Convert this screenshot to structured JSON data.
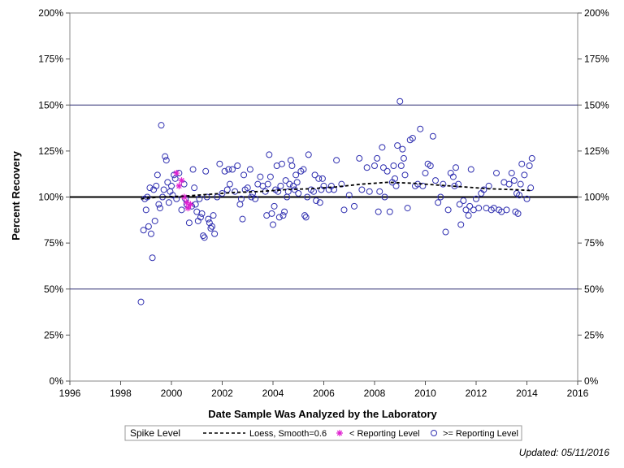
{
  "chart_data": {
    "type": "scatter",
    "xlabel": "Date Sample Was Analyzed by the Laboratory",
    "ylabel": "Percent Recovery",
    "xlim": [
      1996,
      2016
    ],
    "ylim": [
      0,
      200
    ],
    "x_ticks": [
      1996,
      1998,
      2000,
      2002,
      2004,
      2006,
      2008,
      2010,
      2012,
      2014,
      2016
    ],
    "x_tick_labels": [
      "1996",
      "1998",
      "2000",
      "2002",
      "2004",
      "2006",
      "2008",
      "2010",
      "2012",
      "2014",
      "2016"
    ],
    "y_ticks": [
      0,
      25,
      50,
      75,
      100,
      125,
      150,
      175,
      200
    ],
    "y_tick_labels": [
      "0%",
      "25%",
      "50%",
      "75%",
      "100%",
      "125%",
      "150%",
      "175%",
      "200%"
    ],
    "reference_lines": [
      50,
      100,
      150
    ],
    "legend": {
      "title": "Spike Level",
      "placement": "bottom",
      "entries": [
        {
          "label": "Loess, Smooth=0.6",
          "symbol": "dashed-line"
        },
        {
          "label": "< Reporting Level",
          "symbol": "star",
          "color": "#e020d0"
        },
        {
          "label": ">= Reporting Level",
          "symbol": "circle",
          "color": "#3030b0"
        }
      ]
    },
    "footnote": "Updated: 05/11/2016",
    "colors": {
      "circle": "#3030b0",
      "star": "#e020d0",
      "loess": "#000000",
      "refline": "#2a2a70"
    },
    "series": [
      {
        "name": ">= Reporting Level",
        "marker": "circle",
        "points": [
          [
            1998.8,
            43
          ],
          [
            1998.9,
            82
          ],
          [
            1998.95,
            99
          ],
          [
            1999.0,
            93
          ],
          [
            1999.05,
            100
          ],
          [
            1999.1,
            84
          ],
          [
            1999.15,
            105
          ],
          [
            1999.2,
            80
          ],
          [
            1999.25,
            67
          ],
          [
            1999.3,
            104
          ],
          [
            1999.35,
            87
          ],
          [
            1999.4,
            106
          ],
          [
            1999.45,
            112
          ],
          [
            1999.5,
            96
          ],
          [
            1999.55,
            94
          ],
          [
            1999.6,
            139
          ],
          [
            1999.65,
            100
          ],
          [
            1999.7,
            104
          ],
          [
            1999.75,
            122
          ],
          [
            1999.8,
            120
          ],
          [
            1999.85,
            108
          ],
          [
            1999.9,
            97
          ],
          [
            1999.95,
            103
          ],
          [
            2000.0,
            106
          ],
          [
            2000.05,
            101
          ],
          [
            2000.1,
            112
          ],
          [
            2000.15,
            110
          ],
          [
            2000.2,
            99
          ],
          [
            2000.3,
            113
          ],
          [
            2000.4,
            93
          ],
          [
            2000.5,
            107
          ],
          [
            2000.55,
            99
          ],
          [
            2000.6,
            96
          ],
          [
            2000.7,
            86
          ],
          [
            2000.8,
            95
          ],
          [
            2000.85,
            115
          ],
          [
            2000.9,
            105
          ],
          [
            2000.95,
            96
          ],
          [
            2001.0,
            92
          ],
          [
            2001.05,
            87
          ],
          [
            2001.1,
            99
          ],
          [
            2001.15,
            89
          ],
          [
            2001.2,
            91
          ],
          [
            2001.25,
            79
          ],
          [
            2001.3,
            78
          ],
          [
            2001.35,
            114
          ],
          [
            2001.4,
            100
          ],
          [
            2001.45,
            88
          ],
          [
            2001.5,
            86
          ],
          [
            2001.55,
            83
          ],
          [
            2001.6,
            84
          ],
          [
            2001.65,
            90
          ],
          [
            2001.7,
            80
          ],
          [
            2001.8,
            100
          ],
          [
            2001.9,
            118
          ],
          [
            2002.0,
            102
          ],
          [
            2002.1,
            114
          ],
          [
            2002.2,
            104
          ],
          [
            2002.25,
            115
          ],
          [
            2002.3,
            107
          ],
          [
            2002.4,
            115
          ],
          [
            2002.5,
            103
          ],
          [
            2002.6,
            117
          ],
          [
            2002.7,
            96
          ],
          [
            2002.75,
            99
          ],
          [
            2002.8,
            88
          ],
          [
            2002.85,
            112
          ],
          [
            2002.9,
            104
          ],
          [
            2003.0,
            105
          ],
          [
            2003.1,
            115
          ],
          [
            2003.15,
            100
          ],
          [
            2003.2,
            102
          ],
          [
            2003.3,
            99
          ],
          [
            2003.4,
            107
          ],
          [
            2003.5,
            111
          ],
          [
            2003.6,
            106
          ],
          [
            2003.7,
            103
          ],
          [
            2003.75,
            90
          ],
          [
            2003.8,
            107
          ],
          [
            2003.85,
            123
          ],
          [
            2003.9,
            111
          ],
          [
            2003.95,
            91
          ],
          [
            2004.0,
            85
          ],
          [
            2004.05,
            95
          ],
          [
            2004.1,
            104
          ],
          [
            2004.15,
            117
          ],
          [
            2004.2,
            103
          ],
          [
            2004.25,
            89
          ],
          [
            2004.3,
            106
          ],
          [
            2004.35,
            118
          ],
          [
            2004.4,
            90
          ],
          [
            2004.45,
            92
          ],
          [
            2004.5,
            109
          ],
          [
            2004.55,
            100
          ],
          [
            2004.6,
            103
          ],
          [
            2004.65,
            107
          ],
          [
            2004.7,
            120
          ],
          [
            2004.75,
            117
          ],
          [
            2004.8,
            106
          ],
          [
            2004.85,
            104
          ],
          [
            2004.9,
            112
          ],
          [
            2004.95,
            108
          ],
          [
            2005.0,
            102
          ],
          [
            2005.1,
            114
          ],
          [
            2005.2,
            115
          ],
          [
            2005.25,
            90
          ],
          [
            2005.3,
            89
          ],
          [
            2005.35,
            100
          ],
          [
            2005.4,
            123
          ],
          [
            2005.5,
            104
          ],
          [
            2005.6,
            103
          ],
          [
            2005.65,
            112
          ],
          [
            2005.7,
            98
          ],
          [
            2005.8,
            110
          ],
          [
            2005.85,
            97
          ],
          [
            2005.9,
            104
          ],
          [
            2005.95,
            110
          ],
          [
            2006.0,
            106
          ],
          [
            2006.2,
            104
          ],
          [
            2006.3,
            106
          ],
          [
            2006.4,
            104
          ],
          [
            2006.5,
            120
          ],
          [
            2006.7,
            107
          ],
          [
            2006.8,
            93
          ],
          [
            2007.0,
            101
          ],
          [
            2007.2,
            95
          ],
          [
            2007.4,
            121
          ],
          [
            2007.5,
            104
          ],
          [
            2007.7,
            116
          ],
          [
            2007.8,
            103
          ],
          [
            2008.0,
            117
          ],
          [
            2008.1,
            121
          ],
          [
            2008.15,
            92
          ],
          [
            2008.2,
            103
          ],
          [
            2008.3,
            127
          ],
          [
            2008.35,
            116
          ],
          [
            2008.4,
            100
          ],
          [
            2008.5,
            114
          ],
          [
            2008.6,
            92
          ],
          [
            2008.7,
            108
          ],
          [
            2008.75,
            117
          ],
          [
            2008.8,
            110
          ],
          [
            2008.85,
            106
          ],
          [
            2008.9,
            128
          ],
          [
            2009.0,
            152
          ],
          [
            2009.05,
            117
          ],
          [
            2009.1,
            126
          ],
          [
            2009.15,
            121
          ],
          [
            2009.2,
            112
          ],
          [
            2009.3,
            94
          ],
          [
            2009.4,
            131
          ],
          [
            2009.5,
            132
          ],
          [
            2009.6,
            106
          ],
          [
            2009.7,
            107
          ],
          [
            2009.8,
            137
          ],
          [
            2009.9,
            106
          ],
          [
            2010.0,
            113
          ],
          [
            2010.1,
            118
          ],
          [
            2010.2,
            117
          ],
          [
            2010.3,
            133
          ],
          [
            2010.4,
            109
          ],
          [
            2010.5,
            97
          ],
          [
            2010.6,
            100
          ],
          [
            2010.7,
            107
          ],
          [
            2010.8,
            81
          ],
          [
            2010.9,
            93
          ],
          [
            2011.0,
            113
          ],
          [
            2011.1,
            111
          ],
          [
            2011.15,
            106
          ],
          [
            2011.2,
            116
          ],
          [
            2011.3,
            107
          ],
          [
            2011.35,
            96
          ],
          [
            2011.4,
            85
          ],
          [
            2011.5,
            98
          ],
          [
            2011.6,
            93
          ],
          [
            2011.7,
            90
          ],
          [
            2011.75,
            95
          ],
          [
            2011.8,
            115
          ],
          [
            2011.9,
            93
          ],
          [
            2012.0,
            99
          ],
          [
            2012.1,
            94
          ],
          [
            2012.2,
            102
          ],
          [
            2012.3,
            104
          ],
          [
            2012.4,
            94
          ],
          [
            2012.5,
            106
          ],
          [
            2012.6,
            93
          ],
          [
            2012.7,
            94
          ],
          [
            2012.8,
            113
          ],
          [
            2012.9,
            93
          ],
          [
            2013.0,
            92
          ],
          [
            2013.1,
            108
          ],
          [
            2013.2,
            93
          ],
          [
            2013.3,
            107
          ],
          [
            2013.4,
            113
          ],
          [
            2013.5,
            109
          ],
          [
            2013.55,
            92
          ],
          [
            2013.6,
            102
          ],
          [
            2013.65,
            91
          ],
          [
            2013.7,
            101
          ],
          [
            2013.75,
            107
          ],
          [
            2013.8,
            118
          ],
          [
            2013.9,
            112
          ],
          [
            2014.0,
            99
          ],
          [
            2014.1,
            117
          ],
          [
            2014.15,
            105
          ],
          [
            2014.2,
            121
          ]
        ]
      },
      {
        "name": "< Reporting Level",
        "marker": "star",
        "points": [
          [
            2000.2,
            113
          ],
          [
            2000.3,
            106
          ],
          [
            2000.4,
            109
          ],
          [
            2000.5,
            100
          ],
          [
            2000.6,
            97
          ],
          [
            2000.65,
            94
          ],
          [
            2000.75,
            96
          ]
        ]
      },
      {
        "name": "Loess, Smooth=0.6",
        "marker": "dashed-line",
        "points": [
          [
            1998.8,
            99
          ],
          [
            1999.5,
            100
          ],
          [
            2000.5,
            100.5
          ],
          [
            2001.5,
            101.5
          ],
          [
            2002.5,
            102.5
          ],
          [
            2003.5,
            103
          ],
          [
            2004.5,
            104
          ],
          [
            2005.5,
            104.5
          ],
          [
            2006.5,
            105.5
          ],
          [
            2007.5,
            107
          ],
          [
            2008.5,
            108
          ],
          [
            2009.5,
            107.5
          ],
          [
            2010.5,
            106.5
          ],
          [
            2011.5,
            105.5
          ],
          [
            2012.5,
            104.5
          ],
          [
            2013.5,
            104
          ],
          [
            2014.2,
            103.5
          ]
        ]
      }
    ]
  }
}
